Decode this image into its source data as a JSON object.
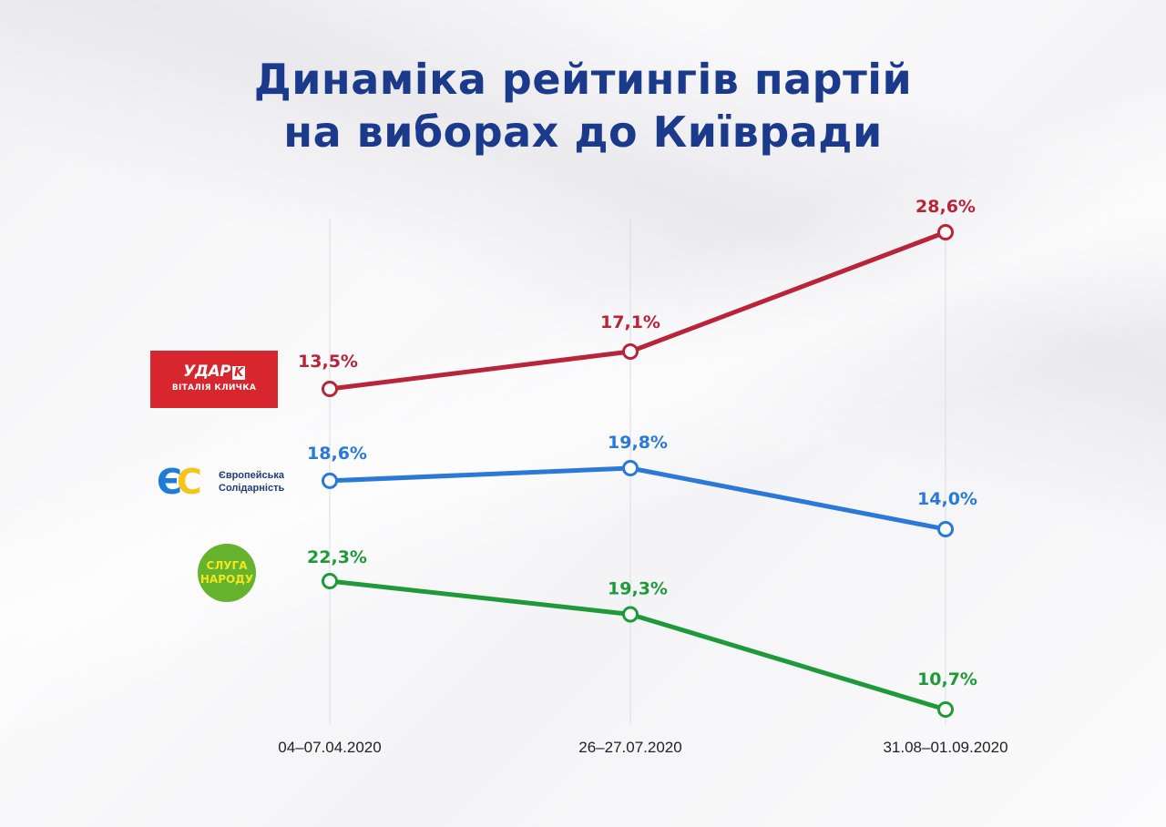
{
  "title_lines": [
    "Динаміка рейтингів партій",
    "на виборах до Київради"
  ],
  "logos": {
    "udar": {
      "main": "УДАР",
      "k": "K",
      "sub": "ВІТАЛІЯ КЛИЧКА"
    },
    "es": {
      "e": "Є",
      "c": "С",
      "line1": "Європейська",
      "line2": "Солідарність"
    },
    "sluha": {
      "line1": "СЛУГА",
      "line2": "НАРОДУ"
    }
  },
  "chart_data": {
    "type": "line",
    "title": "Динаміка рейтингів партій на виборах до Київради",
    "categories": [
      "04–07.04.2020",
      "26–27.07.2020",
      "31.08–01.09.2020"
    ],
    "series": [
      {
        "name": "УДАР Віталія Кличка",
        "color": "#b8243a",
        "values": [
          13.5,
          17.1,
          28.6
        ],
        "labels": [
          "13,5%",
          "17,1%",
          "28,6%"
        ]
      },
      {
        "name": "Європейська Солідарність",
        "color": "#2a78d8",
        "values": [
          18.6,
          19.8,
          14.0
        ],
        "labels": [
          "18,6%",
          "19,8%",
          "14,0%"
        ]
      },
      {
        "name": "Слуга Народу",
        "color": "#1e9a3a",
        "values": [
          22.3,
          19.3,
          10.7
        ],
        "labels": [
          "22,3%",
          "19,3%",
          "10,7%"
        ]
      }
    ],
    "grid": "vertical"
  }
}
